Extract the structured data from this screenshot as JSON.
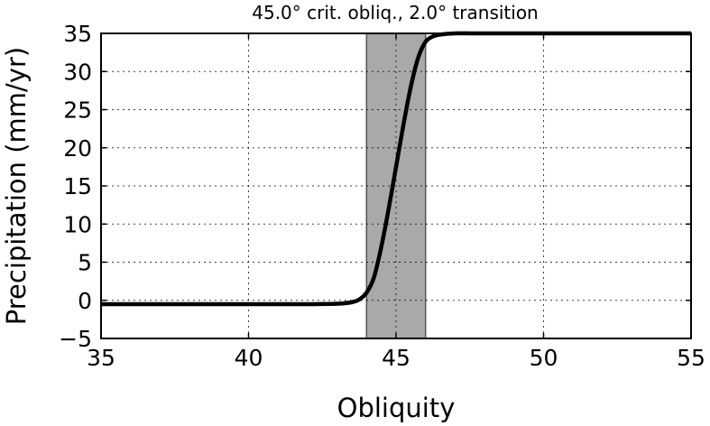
{
  "chart_data": {
    "type": "line",
    "title": "45.0° crit. obliq., 2.0° transition",
    "xlabel": "Obliquity",
    "ylabel": "Precipitation (mm/yr)",
    "xlim": [
      35,
      55
    ],
    "ylim": [
      -5,
      35
    ],
    "xticks": [
      35,
      40,
      45,
      50,
      55
    ],
    "yticks": [
      -5,
      0,
      5,
      10,
      15,
      20,
      25,
      30,
      35
    ],
    "xtick_labels": [
      "35",
      "40",
      "45",
      "50",
      "55"
    ],
    "ytick_labels": [
      "−5",
      "0",
      "5",
      "10",
      "15",
      "20",
      "25",
      "30",
      "35"
    ],
    "grid": true,
    "shaded_band": {
      "x_start": 44.0,
      "x_end": 46.0,
      "color": "#a9a9a9"
    },
    "series": [
      {
        "color": "#000000",
        "x": [
          35.0,
          40.0,
          42.0,
          43.0,
          43.5,
          43.75,
          44.0,
          44.25,
          44.5,
          44.75,
          45.0,
          45.25,
          45.5,
          45.75,
          46.0,
          46.25,
          46.5,
          47.0,
          48.0,
          50.0,
          55.0
        ],
        "y": [
          -0.5,
          -0.5,
          -0.5,
          -0.45,
          -0.25,
          0.1,
          1.0,
          3.0,
          7.0,
          12.0,
          17.5,
          23.0,
          28.0,
          31.8,
          33.9,
          34.6,
          34.85,
          35.0,
          35.0,
          35.0,
          35.0
        ]
      }
    ]
  }
}
